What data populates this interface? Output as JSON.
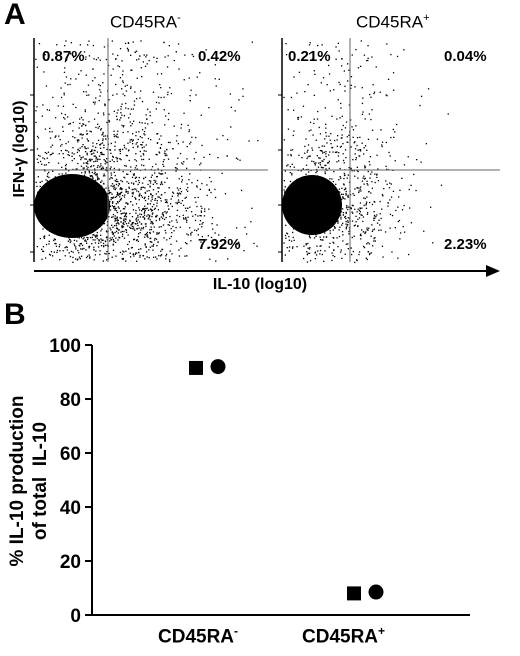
{
  "panel_a": {
    "letter": "A",
    "ylabel": "IFN-γ (log10)",
    "xlabel": "IL-10 (log10)",
    "plots": [
      {
        "header_main": "CD45RA",
        "header_sup": "-",
        "q_upper_left": "0.87%",
        "q_upper_right": "0.42%",
        "q_lower_right": "7.92%"
      },
      {
        "header_main": "CD45RA",
        "header_sup": "+",
        "q_upper_left": "0.21%",
        "q_upper_right": "0.04%",
        "q_lower_right": "2.23%"
      }
    ]
  },
  "panel_b": {
    "letter": "B",
    "ylabel_line1": "% IL-10 production",
    "ylabel_line2": "of total  IL-10",
    "cat_labels": [
      {
        "main": "CD45RA",
        "sup": "-"
      },
      {
        "main": "CD45RA",
        "sup": "+"
      }
    ]
  },
  "chart_data": [
    {
      "type": "scatter",
      "title": "",
      "xlabel": "IL-10 (log10)",
      "ylabel": "IFN-γ (log10)",
      "subplots": [
        {
          "name": "CD45RA-",
          "quadrants": {
            "upper_left": 0.87,
            "upper_right": 0.42,
            "lower_right": 7.92
          }
        },
        {
          "name": "CD45RA+",
          "quadrants": {
            "upper_left": 0.21,
            "upper_right": 0.04,
            "lower_right": 2.23
          }
        }
      ]
    },
    {
      "type": "scatter",
      "title": "",
      "xlabel": "",
      "ylabel": "% IL-10 production of total IL-10",
      "categories": [
        "CD45RA-",
        "CD45RA+"
      ],
      "ylim": [
        0,
        100
      ],
      "yticks": [
        0,
        20,
        40,
        60,
        80,
        100
      ],
      "series": [
        {
          "marker": "square",
          "values": [
            91.5,
            8
          ]
        },
        {
          "marker": "circle",
          "values": [
            92,
            8.5
          ]
        }
      ]
    }
  ]
}
